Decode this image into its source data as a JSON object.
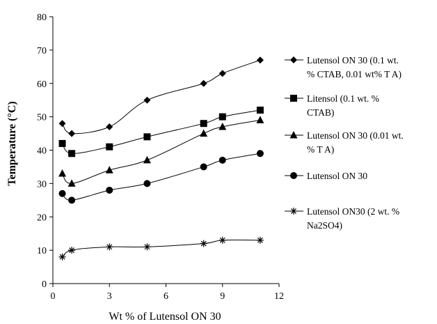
{
  "chart_data": {
    "type": "line",
    "xlabel": "Wt % of  Lutensol ON 30",
    "ylabel": "Temperature (°C)",
    "xlim": [
      0,
      12
    ],
    "ylim": [
      0,
      80
    ],
    "xticks": [
      0,
      3,
      6,
      9,
      12
    ],
    "yticks": [
      0,
      10,
      20,
      30,
      40,
      50,
      60,
      70,
      80
    ],
    "grid": false,
    "legend_position": "right",
    "series": [
      {
        "name": "Lutensol ON 30 (0.1 wt. % CTAB, 0.01 wt% T A)",
        "legend_lines": [
          "Lutensol ON 30 (0.1 wt.",
          "% CTAB, 0.01 wt% T A)"
        ],
        "marker": "diamond",
        "color": "#000000",
        "points": [
          [
            0.5,
            48
          ],
          [
            1,
            45
          ],
          [
            3,
            47
          ],
          [
            5,
            55
          ],
          [
            8,
            60
          ],
          [
            9,
            63
          ],
          [
            11,
            67
          ]
        ]
      },
      {
        "name": "Litensol (0.1 wt. % CTAB)",
        "legend_lines": [
          "Litensol (0.1 wt. %",
          "CTAB)"
        ],
        "marker": "square",
        "color": "#000000",
        "points": [
          [
            0.5,
            42
          ],
          [
            1,
            39
          ],
          [
            3,
            41
          ],
          [
            5,
            44
          ],
          [
            8,
            48
          ],
          [
            9,
            50
          ],
          [
            11,
            52
          ]
        ]
      },
      {
        "name": "Lutensol ON 30 (0.01 wt. % T A)",
        "legend_lines": [
          "Lutensol ON 30 (0.01 wt.",
          "%  T A)"
        ],
        "marker": "triangle",
        "color": "#000000",
        "points": [
          [
            0.5,
            33
          ],
          [
            1,
            30
          ],
          [
            3,
            34
          ],
          [
            5,
            37
          ],
          [
            8,
            45
          ],
          [
            9,
            47
          ],
          [
            11,
            49
          ]
        ]
      },
      {
        "name": "Lutensol ON 30",
        "legend_lines": [
          "Lutensol ON 30"
        ],
        "marker": "circle",
        "color": "#000000",
        "points": [
          [
            0.5,
            27
          ],
          [
            1,
            25
          ],
          [
            3,
            28
          ],
          [
            5,
            30
          ],
          [
            8,
            35
          ],
          [
            9,
            37
          ],
          [
            11,
            39
          ]
        ]
      },
      {
        "name": "Lutensol ON30 (2 wt. % Na2SO4)",
        "legend_lines": [
          "Lutensol ON30 (2 wt. %",
          "Na2SO4)"
        ],
        "marker": "star",
        "color": "#000000",
        "points": [
          [
            0.5,
            8
          ],
          [
            1,
            10
          ],
          [
            3,
            11
          ],
          [
            5,
            11
          ],
          [
            8,
            12
          ],
          [
            9,
            13
          ],
          [
            11,
            13
          ]
        ]
      }
    ]
  }
}
